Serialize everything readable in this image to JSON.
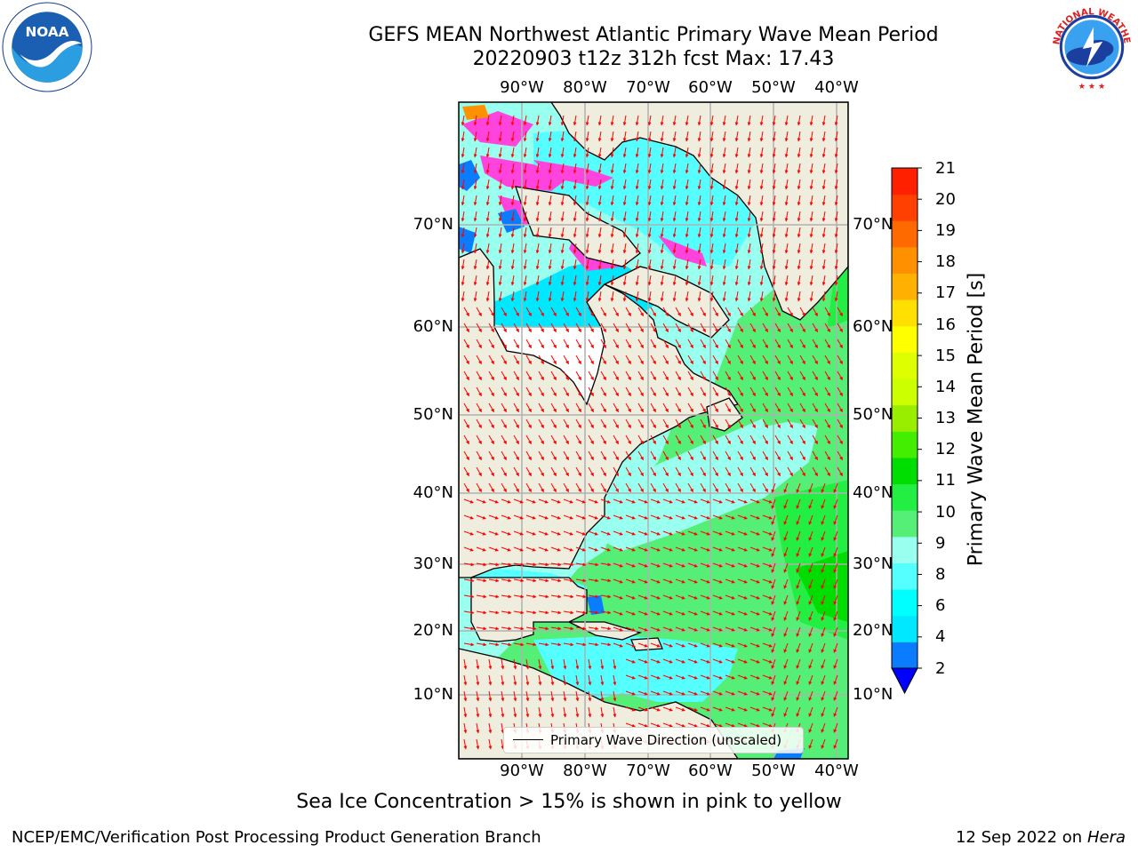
{
  "title": {
    "line1": "GEFS MEAN Northwest Atlantic Primary Wave Mean Period",
    "line2": "20220903 t12z 312h fcst   Max: 17.43"
  },
  "logos": {
    "left": {
      "name": "noaa-logo",
      "text": "NOAA",
      "ring_text": "NATIONAL OCEANIC AND ATMOSPHERIC ADMINISTRATION · U.S. DEPARTMENT OF COMMERCE"
    },
    "right": {
      "name": "nws-logo",
      "ring_text": "NATIONAL WEATHER SERVICE"
    }
  },
  "map": {
    "lon_labels": [
      "90°W",
      "80°W",
      "70°W",
      "60°W",
      "50°W",
      "40°W"
    ],
    "lat_labels": [
      "70°N",
      "60°N",
      "50°N",
      "40°N",
      "30°N",
      "20°N",
      "10°N"
    ],
    "colors": {
      "land": "#efeddd",
      "ocean_missing": "#ffffff",
      "grid": "#b0b0b0",
      "arrows": "#ff0000",
      "coast": "#000000"
    },
    "legend": {
      "label": "Primary Wave Direction (unscaled)"
    }
  },
  "colorbar": {
    "label": "Primary Wave Mean Period [s]",
    "ticks": [
      "21",
      "20",
      "19",
      "18",
      "17",
      "16",
      "15",
      "14",
      "13",
      "12",
      "11",
      "10",
      "9",
      "8",
      "6",
      "4",
      "2"
    ],
    "levels_low_to_high": [
      {
        "from": 2,
        "color": "#0a7cff"
      },
      {
        "from": 4,
        "color": "#00e8ff"
      },
      {
        "from": 6,
        "color": "#00ffff"
      },
      {
        "from": 7,
        "color": "#55ffff"
      },
      {
        "from": 8,
        "color": "#99ffee"
      },
      {
        "from": 9,
        "color": "#55ef77"
      },
      {
        "from": 10,
        "color": "#22ee44"
      },
      {
        "from": 11,
        "color": "#00dd00"
      },
      {
        "from": 11.5,
        "color": "#44ee00"
      },
      {
        "from": 12,
        "color": "#99ee00"
      },
      {
        "from": 13,
        "color": "#ccff00"
      },
      {
        "from": 14,
        "color": "#ddff00"
      },
      {
        "from": 15,
        "color": "#ffff00"
      },
      {
        "from": 16,
        "color": "#ffe000"
      },
      {
        "from": 16.5,
        "color": "#ffb000"
      },
      {
        "from": 17,
        "color": "#ff9000"
      },
      {
        "from": 18,
        "color": "#ff6a00"
      },
      {
        "from": 19,
        "color": "#ff4000"
      },
      {
        "from": 20,
        "color": "#ff2000"
      },
      {
        "from": 21,
        "color": "#ff0000"
      }
    ],
    "under_color": "#0000ff"
  },
  "footnote": "Sea Ice Concentration > 15% is shown in pink to yellow",
  "credit": "NCEP/EMC/Verification Post Processing Product Generation Branch",
  "date_stamp": {
    "date": "12 Sep 2022 on",
    "machine": "Hera"
  }
}
